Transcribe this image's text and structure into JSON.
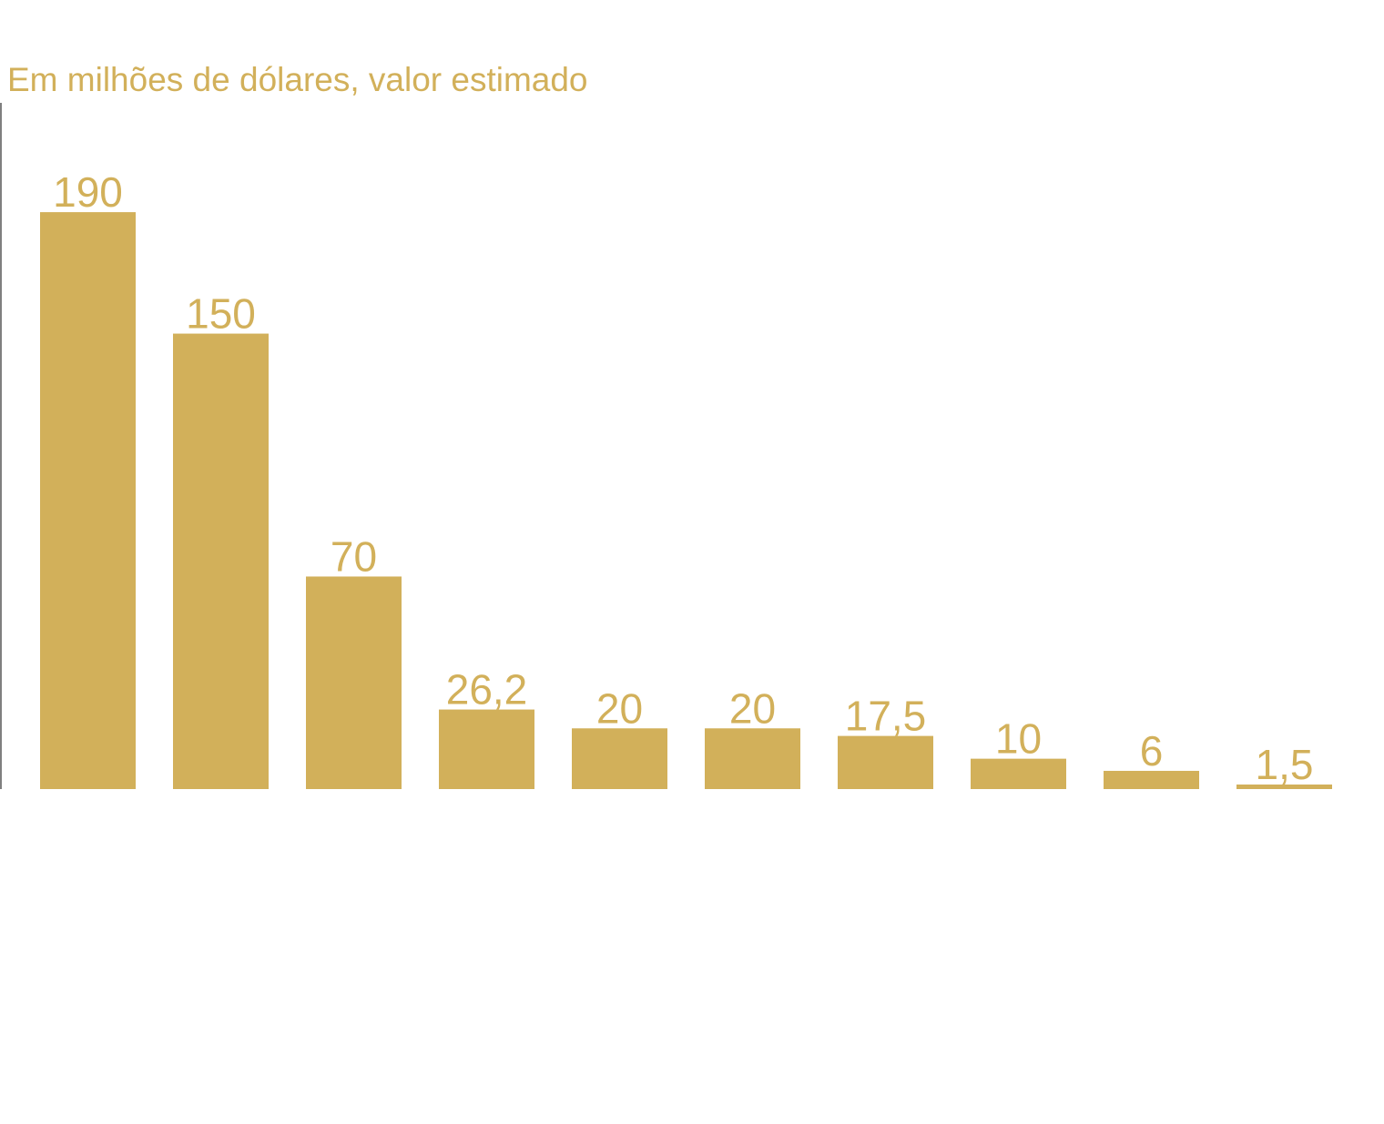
{
  "chart_data": {
    "type": "bar",
    "title": "Em milhões de dólares, valor estimado",
    "categories": [
      null,
      null,
      null,
      null,
      null,
      null,
      null,
      null,
      null,
      null
    ],
    "values": [
      190,
      150,
      70,
      26.2,
      20,
      20,
      17.5,
      10,
      6,
      1.5
    ],
    "value_labels": [
      "190",
      "150",
      "70",
      "26,2",
      "20",
      "20",
      "17,5",
      "10",
      "6",
      "1,5"
    ],
    "color": "#d2b05a",
    "ylim": [
      0,
      226
    ]
  }
}
